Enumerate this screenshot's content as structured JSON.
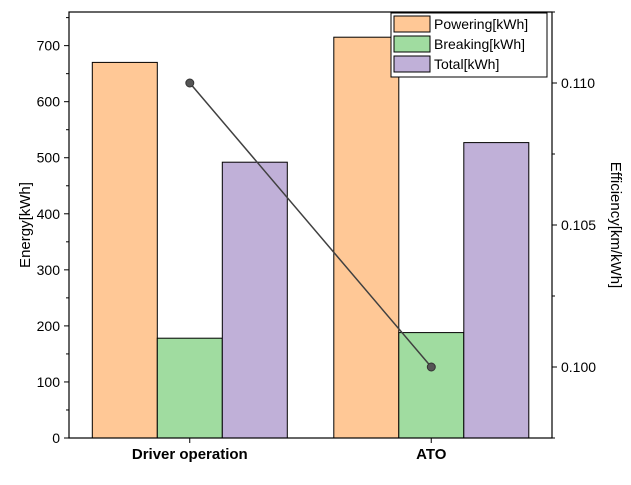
{
  "chart_data": {
    "type": "bar",
    "categories": [
      "Driver operation",
      "ATO"
    ],
    "series": [
      {
        "name": "Powering[kWh]",
        "values": [
          670,
          715
        ],
        "color": "#FFC896"
      },
      {
        "name": "Breaking[kWh]",
        "values": [
          178,
          188
        ],
        "color": "#A0DCA0"
      },
      {
        "name": "Total[kWh]",
        "values": [
          492,
          527
        ],
        "color": "#C0B0D8"
      }
    ],
    "line_series": {
      "values": [
        0.11,
        0.1
      ],
      "color": "#404040",
      "axis": "right"
    },
    "xlabel": "",
    "ylabel": "Energy[kWh]",
    "y2label": "Efficiency[km/kWh]",
    "ylim": [
      0,
      760
    ],
    "y2lim": [
      0.0975,
      0.1125
    ],
    "yticks": [
      0,
      100,
      200,
      300,
      400,
      500,
      600,
      700
    ],
    "y2ticks": [
      "0.100",
      "0.105",
      "0.110"
    ],
    "legend_position": "top-right",
    "grid": false
  }
}
